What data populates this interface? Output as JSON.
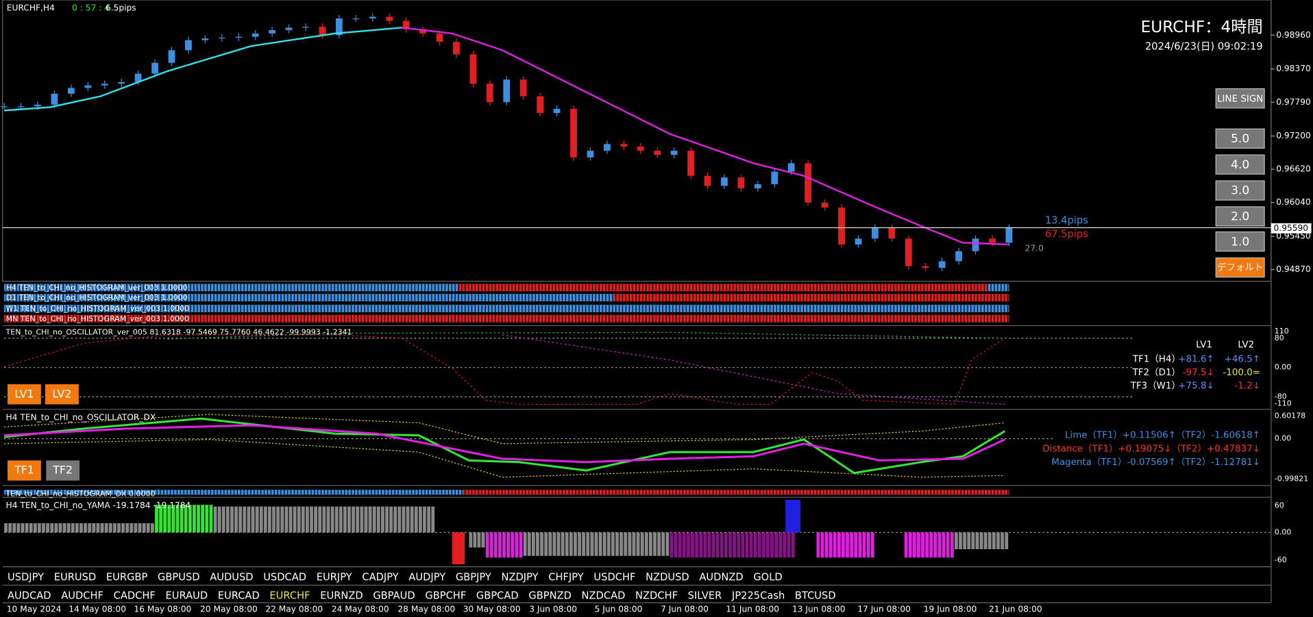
{
  "header": {
    "symbol": "EURCHF,H4",
    "timer": "0 : 57 : 4",
    "spread": "6.5pips",
    "title": "EURCHF：4時間",
    "datetime": "2024/6/23(日) 09:02:19"
  },
  "buttons": [
    "LINE SIGN",
    "5.0",
    "4.0",
    "3.0",
    "2.0",
    "1.0",
    "デフォルト"
  ],
  "price": {
    "closes": [
      0.97718,
      0.97718,
      0.97748,
      0.97938,
      0.9804,
      0.98084,
      0.98113,
      0.98142,
      0.98288,
      0.98478,
      0.98697,
      0.98872,
      0.98902,
      0.98916,
      0.98931,
      0.98989,
      0.99048,
      0.99091,
      0.99106,
      0.9896,
      0.99252,
      0.99252,
      0.99281,
      0.99208,
      0.99062,
      0.98989,
      0.98843,
      0.98624,
      0.98113,
      0.97791,
      0.98186,
      0.97894,
      0.97602,
      0.97675,
      0.96827,
      0.96944,
      0.97061,
      0.97017,
      0.96944,
      0.96871,
      0.96944,
      0.96506,
      0.96331,
      0.96477,
      0.96287,
      0.9636,
      0.96579,
      0.96725,
      0.96039,
      0.95951,
      0.95308,
      0.95411,
      0.956,
      0.95411,
      0.94929,
      0.94899,
      0.95016,
      0.95191,
      0.95411,
      0.95338,
      0.956
    ],
    "axis": [
      {
        "value": 0.9896,
        "label": "0.98960"
      },
      {
        "value": 0.9837,
        "label": "0.98370"
      },
      {
        "value": 0.9779,
        "label": "0.97790"
      },
      {
        "value": 0.972,
        "label": "0.97200"
      },
      {
        "value": 0.9662,
        "label": "0.96620"
      },
      {
        "value": 0.9604,
        "label": "0.96040"
      },
      {
        "value": 0.9545,
        "label": "0.95450"
      },
      {
        "value": 0.9487,
        "label": "0.94870"
      }
    ],
    "current": {
      "value": 0.9559,
      "label": "0.95590"
    },
    "pips_up": "13.4pips",
    "pips_down": "67.5pips",
    "mark": "27.0"
  },
  "histograms": [
    "H4 TEN_to_CHI_no_HISTOGRAM_ver_003 1.0000",
    "D1 TEN_to_CHI_no_HISTOGRAM_ver_003 1.0000",
    "W1 TEN_to_CHI_no_HISTOGRAM_ver_003 1.0000",
    "MN TEN_to_CHI_no_HISTOGRAM_ver_003 1.0000"
  ],
  "oscillator": {
    "label": "TEN_to_CHI_no_OSCILLATOR_ver_005 81.6318 -97.5469 75.7760 46.4622 -99.9993 -1.2341",
    "axis": [
      "110",
      "80",
      "0.00",
      "-80",
      "-110"
    ],
    "buttons": [
      "LV1",
      "LV2"
    ],
    "table": {
      "header": [
        "LV1",
        "LV2"
      ],
      "rows": [
        [
          "TF1（H4）",
          "+81.6↑",
          "+46.5↑"
        ],
        [
          "TF2（D1）",
          "-97.5↓",
          "-100.0="
        ],
        [
          "TF3（W1）",
          "+75.8↓",
          "-1.2↓"
        ]
      ]
    }
  },
  "dx": {
    "label": "H4 TEN_to_CHI_no_OSCILLATOR_DX",
    "axis": [
      "0.60178",
      "0.00",
      "-0.99821"
    ],
    "buttons": [
      "TF1",
      "TF2"
    ],
    "rows": [
      "Lime（TF1）+0.11506↑（TF2）-1.60618↑",
      "Distance（TF1）+0.19075↓（TF2）+0.47837↓",
      "Magenta（TF1）-0.07569↑（TF2）-1.12781↓"
    ]
  },
  "histogram_dx": {
    "label": "TEN_to_CHI_no_HISTOGRAM_DX 0.0000"
  },
  "yama": {
    "label": "H4 TEN_to_CHI_no_YAMA -19.1784 -19.1784",
    "axis": [
      "60",
      "0.00",
      "-60"
    ]
  },
  "symbols": [
    [
      "USDJPY",
      "EURUSD",
      "EURGBP",
      "GBPUSD",
      "AUDUSD",
      "USDCAD",
      "EURJPY",
      "CADJPY",
      "AUDJPY",
      "GBPJPY",
      "NZDJPY",
      "CHFJPY",
      "USDCHF",
      "NZDUSD",
      "AUDNZD",
      "GOLD"
    ],
    [
      "AUDCAD",
      "AUDCHF",
      "CADCHF",
      "EURAUD",
      "EURCAD",
      "EURCHF",
      "EURNZD",
      "GBPAUD",
      "GBPCHF",
      "GBPCAD",
      "GBPNZD",
      "NZDCAD",
      "NZDCHF",
      "SILVER",
      "JP225Cash",
      "BTCUSD"
    ]
  ],
  "active_symbol": "EURCHF",
  "dates": [
    "10 May 2024",
    "14 May 08:00",
    "16 May 08:00",
    "20 May 08:00",
    "22 May 08:00",
    "24 May 08:00",
    "28 May 08:00",
    "30 May 08:00",
    "3 Jun 08:00",
    "5 Jun 08:00",
    "7 Jun 08:00",
    "11 Jun 08:00",
    "13 Jun 08:00",
    "17 Jun 08:00",
    "19 Jun 08:00",
    "21 Jun 08:00"
  ]
}
